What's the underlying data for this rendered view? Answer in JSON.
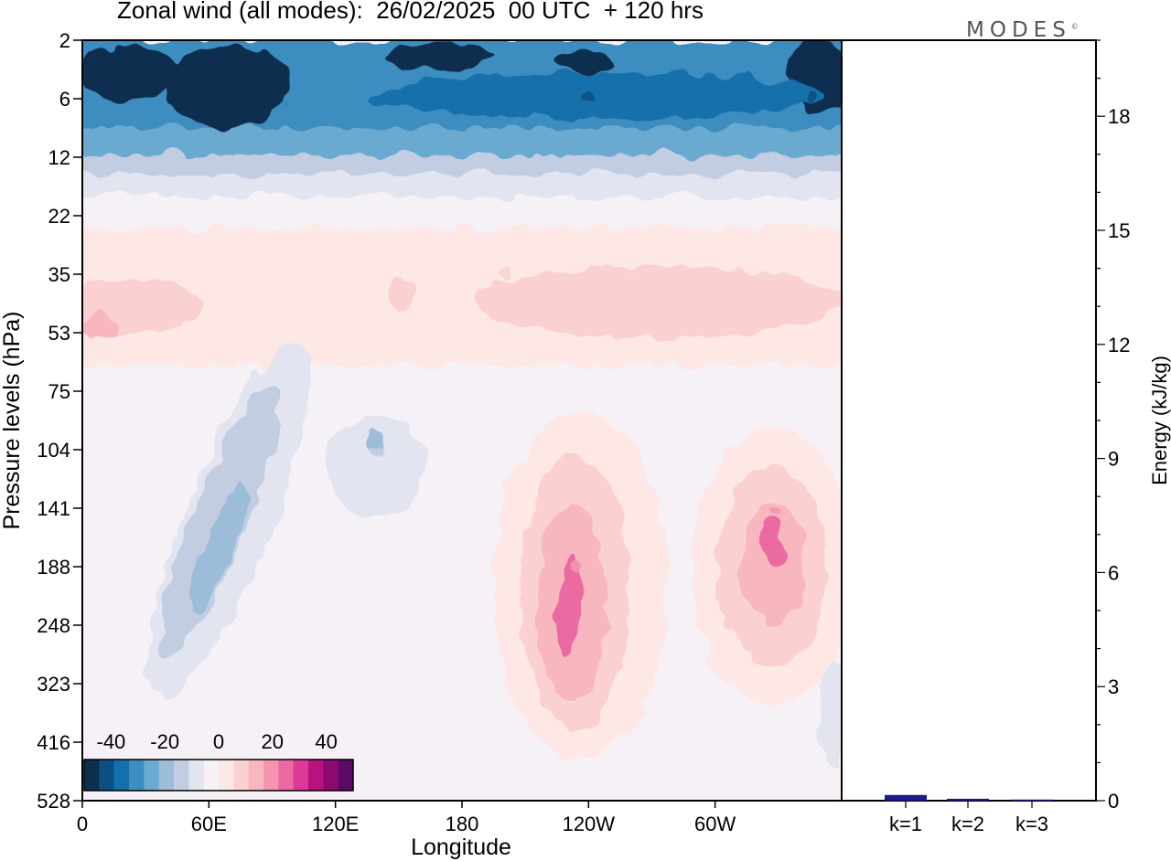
{
  "title": "Zonal wind (all modes):  26/02/2025  00 UTC  + 120 hrs",
  "logo": {
    "text": "MODES",
    "mark": "©"
  },
  "chart_data": [
    {
      "type": "heatmap",
      "xlabel": "Longitude",
      "ylabel": "Pressure levels (hPa)",
      "x_ticks": [
        "0",
        "60E",
        "120E",
        "180",
        "120W",
        "60W"
      ],
      "x_tick_values": [
        0,
        60,
        120,
        180,
        240,
        300
      ],
      "xlim": [
        0,
        360
      ],
      "y_ticks": [
        "2",
        "6",
        "12",
        "22",
        "35",
        "53",
        "75",
        "104",
        "141",
        "188",
        "248",
        "323",
        "416",
        "528"
      ],
      "colorbar": {
        "tick_labels": [
          "-40",
          "-20",
          "0",
          "20",
          "40"
        ],
        "tick_values": [
          -40,
          -20,
          0,
          20,
          40
        ],
        "vmin": -50,
        "vmax": 50,
        "colors": [
          "#0b2f4f",
          "#0d4f80",
          "#1370ac",
          "#3c8dc0",
          "#6aaad0",
          "#9bbdd8",
          "#c2cde2",
          "#e2e4ef",
          "#f6f1f6",
          "#fde8e6",
          "#fbd0d0",
          "#f8b6bf",
          "#f494b0",
          "#ec6aa2",
          "#db3b96",
          "#b8127f",
          "#8a0a70",
          "#5b0966"
        ]
      },
      "field_features": [
        {
          "lon": 60,
          "level": "6",
          "value": -45
        },
        {
          "lon": 170,
          "level": "6",
          "value": -38
        },
        {
          "lon": 240,
          "level": "6",
          "value": -40
        },
        {
          "lon": 345,
          "level": "6",
          "value": -42
        },
        {
          "lon": 200,
          "level": "35",
          "value": 7
        },
        {
          "lon": 260,
          "level": "35",
          "value": 9
        },
        {
          "lon": 5,
          "level": "53",
          "value": 12
        },
        {
          "lon": 65,
          "level": "188",
          "value": -20
        },
        {
          "lon": 140,
          "level": "104",
          "value": -16
        },
        {
          "lon": 235,
          "level": "188",
          "value": 22
        },
        {
          "lon": 328,
          "level": "141",
          "value": 20
        }
      ]
    },
    {
      "type": "bar",
      "ylabel": "Energy (kJ/kg)",
      "categories": [
        "k=1",
        "k=2",
        "k=3"
      ],
      "values": [
        0.15,
        0.05,
        0.03
      ],
      "ylim": [
        0,
        20
      ],
      "y_ticks": [
        "0",
        "3",
        "6",
        "9",
        "12",
        "15",
        "18"
      ],
      "y_tick_values": [
        0,
        3,
        6,
        9,
        12,
        15,
        18
      ],
      "y_minor_step": 1,
      "bar_color": "#1a1a8c"
    }
  ]
}
